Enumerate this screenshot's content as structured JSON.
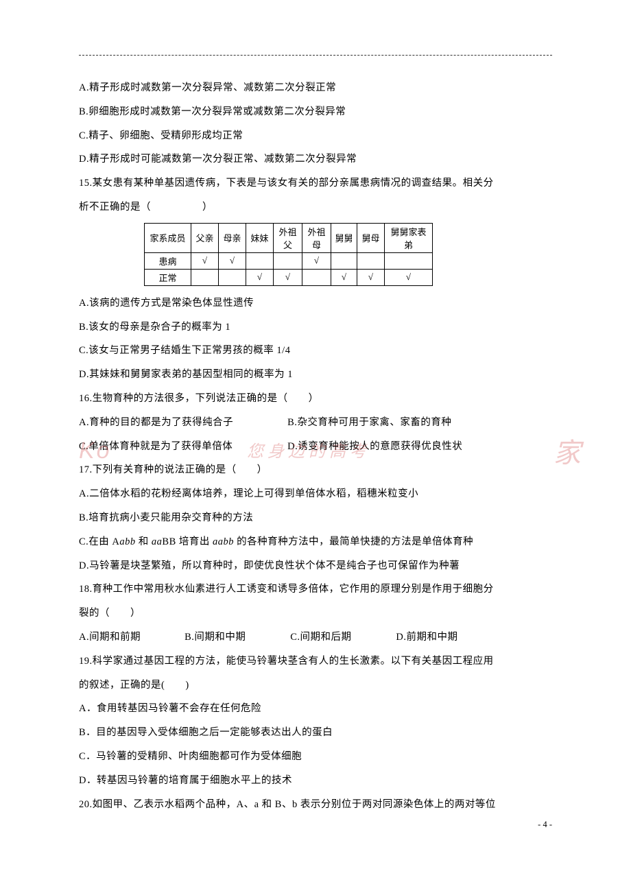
{
  "question14": {
    "optA": "A.精子形成时减数第一次分裂异常、减数第二次分裂正常",
    "optB": "B.卵细胞形成时减数第一次分裂异常或减数第二次分裂异常",
    "optC": "C.精子、卵细胞、受精卵形成均正常",
    "optD": "D.精子形成时可能减数第一次分裂正常、减数第二次分裂异常"
  },
  "question15": {
    "stem1": "15.某女患有某种单基因遗传病，下表是与该女有关的部分亲属患病情况的调查结果。相关分",
    "stem2": "析不正确的是（　　　　　）",
    "table": {
      "headers": [
        "家系成员",
        "父亲",
        "母亲",
        "妹妹",
        "外祖父",
        "外祖母",
        "舅舅",
        "舅母",
        "舅舅家表弟"
      ],
      "rows": [
        {
          "label": "患病",
          "cells": [
            "√",
            "√",
            "",
            "",
            "√",
            "",
            "",
            ""
          ]
        },
        {
          "label": "正常",
          "cells": [
            "",
            "",
            "√",
            "√",
            "",
            "√",
            "√",
            "√"
          ]
        }
      ]
    },
    "optA": "A.该病的遗传方式是常染色体显性遗传",
    "optB": "B.该女的母亲是杂合子的概率为 1",
    "optC": "C.该女与正常男子结婚生下正常男孩的概率 1/4",
    "optD": "D.其妹妹和舅舅家表弟的基因型相同的概率为 1"
  },
  "question16": {
    "stem": "16.生物育种的方法很多，下列说法正确的是（　　）",
    "optA": "A.育种的目的都是为了获得纯合子",
    "optB": "B.杂交育种可用于家禽、家畜的育种",
    "optC": "C.单倍体育种就是为了获得单倍体",
    "optD": "D.诱变育种能按人的意愿获得优良性状"
  },
  "question17": {
    "stem": "17.下列有关育种的说法正确的是（　　）",
    "optA": "A.二倍体水稻的花粉经离体培养，理论上可得到单倍体水稻，稻穗米粒变小",
    "optB": "B.培育抗病小麦只能用杂交育种的方法",
    "optC_part1": "C.在由 A",
    "optC_italic1": "abb",
    "optC_part2": " 和 ",
    "optC_italic2": "aa",
    "optC_part3": "BB 培育出 ",
    "optC_italic3": "aabb",
    "optC_part4": " 的各种育种方法中，最简单快捷的方法是单倍体育种",
    "optD": "D.马铃薯是块茎繁殖，所以育种时，即使优良性状个体不是纯合子也可保留作为种薯"
  },
  "question18": {
    "stem1": "18.育种工作中常用秋水仙素进行人工诱变和诱导多倍体，它作用的原理分别是作用于细胞分",
    "stem2": "裂的（　　）",
    "optA": "A.间期和前期",
    "optB": "B.间期和中期",
    "optC": "C.间期和后期",
    "optD": "D.前期和中期"
  },
  "question19": {
    "stem1": "19.科学家通过基因工程的方法，能使马铃薯块茎含有人的生长激素。以下有关基因工程应用",
    "stem2": "的叙述，正确的是(　　)",
    "optA": "A．食用转基因马铃薯不会存在任何危险",
    "optB": "B．目的基因导入受体细胞之后一定能够表达出人的蛋白",
    "optC": "C．马铃薯的受精卵、叶肉细胞都可作为受体细胞",
    "optD": "D．转基因马铃薯的培育属于细胞水平上的技术"
  },
  "question20": {
    "stem": "20.如图甲、乙表示水稻两个品种，A、a 和 B、b 表示分别位于两对同源染色体上的两对等位"
  },
  "watermarks": {
    "left": "Ko",
    "center": "您身边的高考",
    "right": "家"
  },
  "pageNumber": "- 4 -"
}
